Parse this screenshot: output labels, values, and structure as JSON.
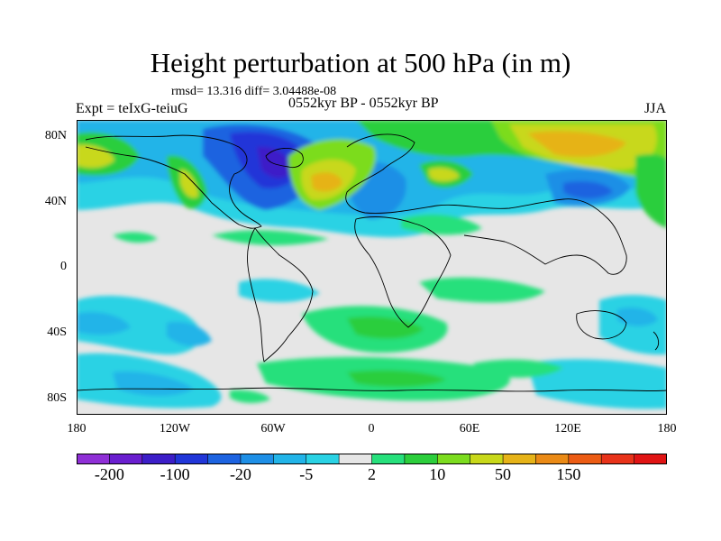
{
  "title": "Height perturbation at 500 hPa (in m)",
  "stats_text": "rmsd= 13.316 diff= 3.04488e-08",
  "experiment_text": "Expt = teIxG-teiuG",
  "period_text": "0552kyr BP - 0552kyr BP",
  "season": "JJA",
  "lat_ticks": [
    "80N",
    "40N",
    "0",
    "40S",
    "80S"
  ],
  "lon_ticks": [
    "180",
    "120W",
    "60W",
    "0",
    "60E",
    "120E",
    "180"
  ],
  "colorbar": {
    "colors": [
      "#8f2fd6",
      "#6a1fcf",
      "#3c1ec8",
      "#2136d8",
      "#1d63e0",
      "#1e8fe6",
      "#22b4e8",
      "#2ad2e4",
      "#e6e6e6",
      "#27e07c",
      "#2cce3c",
      "#7cdc1f",
      "#c8d81a",
      "#e6b318",
      "#ea8a16",
      "#ec5c14",
      "#e8331a",
      "#e01414"
    ],
    "labels": [
      "-200",
      "-100",
      "-20",
      "-5",
      "2",
      "10",
      "50",
      "150"
    ]
  }
}
